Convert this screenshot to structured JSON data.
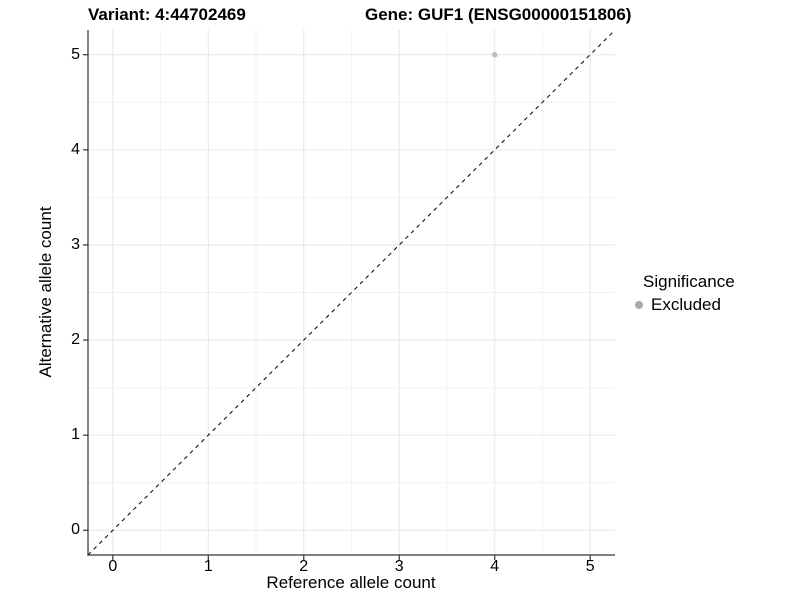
{
  "header": {
    "variant_title": "Variant: 4:44702469",
    "gene_title": "Gene: GUF1 (ENSG00000151806)"
  },
  "axes": {
    "x": {
      "title": "Reference allele count"
    },
    "y": {
      "title": "Alternative allele count"
    }
  },
  "legend": {
    "title": "Significance",
    "items": [
      {
        "label": "Excluded",
        "marker": "circle-icon",
        "color": "#a9a9a9"
      }
    ]
  },
  "chart_data": {
    "type": "scatter",
    "title": "Variant: 4:44702469 | Gene: GUF1 (ENSG00000151806)",
    "xlabel": "Reference allele count",
    "ylabel": "Alternative allele count",
    "xlim": [
      -0.26,
      5.26
    ],
    "ylim": [
      -0.26,
      5.26
    ],
    "x_ticks": [
      0,
      1,
      2,
      3,
      4,
      5
    ],
    "y_ticks": [
      0,
      1,
      2,
      3,
      4,
      5
    ],
    "x_minor_gridlines": [
      0.5,
      1.5,
      2.5,
      3.5,
      4.5
    ],
    "y_minor_gridlines": [
      0.5,
      1.5,
      2.5,
      3.5,
      4.5
    ],
    "grid": true,
    "legend_position": "right",
    "series": [
      {
        "name": "Excluded",
        "color": "#bebebe",
        "marker": "circle",
        "points": [
          {
            "x": 4,
            "y": 5
          }
        ]
      }
    ],
    "reference_line": {
      "type": "identity y=x",
      "style": "dashed",
      "color": "#000000"
    }
  },
  "colors": {
    "background": "#ffffff",
    "grid_major": "#e6e6e6",
    "grid_minor": "#f2f2f2",
    "axis_line": "#333333",
    "tick": "#333333",
    "text": "#000000"
  }
}
